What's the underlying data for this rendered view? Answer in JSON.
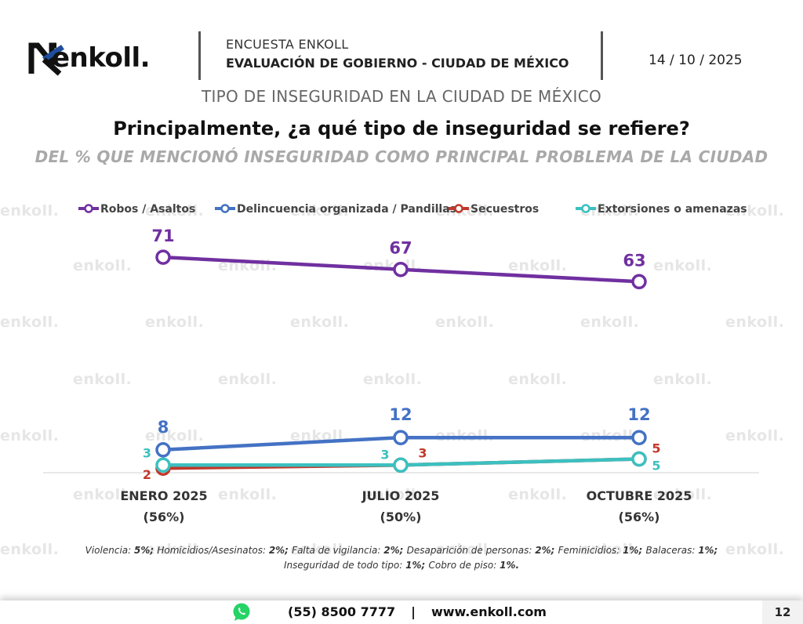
{
  "header": {
    "brand": "enkoll.",
    "survey_name": "ENCUESTA ENKOLL",
    "survey_title": "EVALUACIÓN DE GOBIERNO - CIUDAD DE MÉXICO",
    "date": "14 / 10 / 2025"
  },
  "topic": "TIPO DE INSEGURIDAD EN LA CIUDAD DE MÉXICO",
  "question": "Principalmente, ¿a qué tipo de inseguridad se refiere?",
  "base_note": "DEL % QUE MENCIONÓ INSEGURIDAD COMO PRINCIPAL PROBLEMA DE LA CIUDAD",
  "watermark_text": "enkoll.",
  "chart_data": {
    "type": "line",
    "categories": [
      "ENERO 2025",
      "JULIO 2025",
      "OCTUBRE 2025"
    ],
    "category_bases": [
      "(56%)",
      "(50%)",
      "(56%)"
    ],
    "ylim": [
      0,
      75
    ],
    "grid": false,
    "legend_position": "top",
    "series": [
      {
        "name": "Robos / Asaltos",
        "values": [
          71,
          67,
          63
        ],
        "color": "#7030a0"
      },
      {
        "name": "Delincuencia organizada / Pandillas",
        "values": [
          8,
          12,
          12
        ],
        "color": "#4472c4"
      },
      {
        "name": "Secuestros",
        "values": [
          2,
          3,
          5
        ],
        "color": "#c0392b"
      },
      {
        "name": "Extorsiones o amenazas",
        "values": [
          3,
          3,
          5
        ],
        "color": "#3cc0c0"
      }
    ]
  },
  "other_mentions": {
    "line1": [
      {
        "label": "Violencia: ",
        "value": "5%",
        "sep": "; "
      },
      {
        "label": "Homicidios/Asesinatos: ",
        "value": "2%",
        "sep": "; "
      },
      {
        "label": "Falta de vigilancia: ",
        "value": "2%",
        "sep": "; "
      },
      {
        "label": "Desaparición de personas: ",
        "value": "2%",
        "sep": "; "
      },
      {
        "label": "Feminicidios: ",
        "value": "1%",
        "sep": "; "
      },
      {
        "label": "Balaceras: ",
        "value": "1%",
        "sep": ";"
      }
    ],
    "line2": [
      {
        "label": "Inseguridad de todo tipo: ",
        "value": "1%",
        "sep": "; "
      },
      {
        "label": "Cobro de piso: ",
        "value": "1%",
        "sep": "."
      }
    ]
  },
  "footer": {
    "phone": "(55) 8500 7777",
    "separator": "|",
    "website": "www.enkoll.com",
    "page_number": "12",
    "contact_icon": "whatsapp-icon"
  }
}
